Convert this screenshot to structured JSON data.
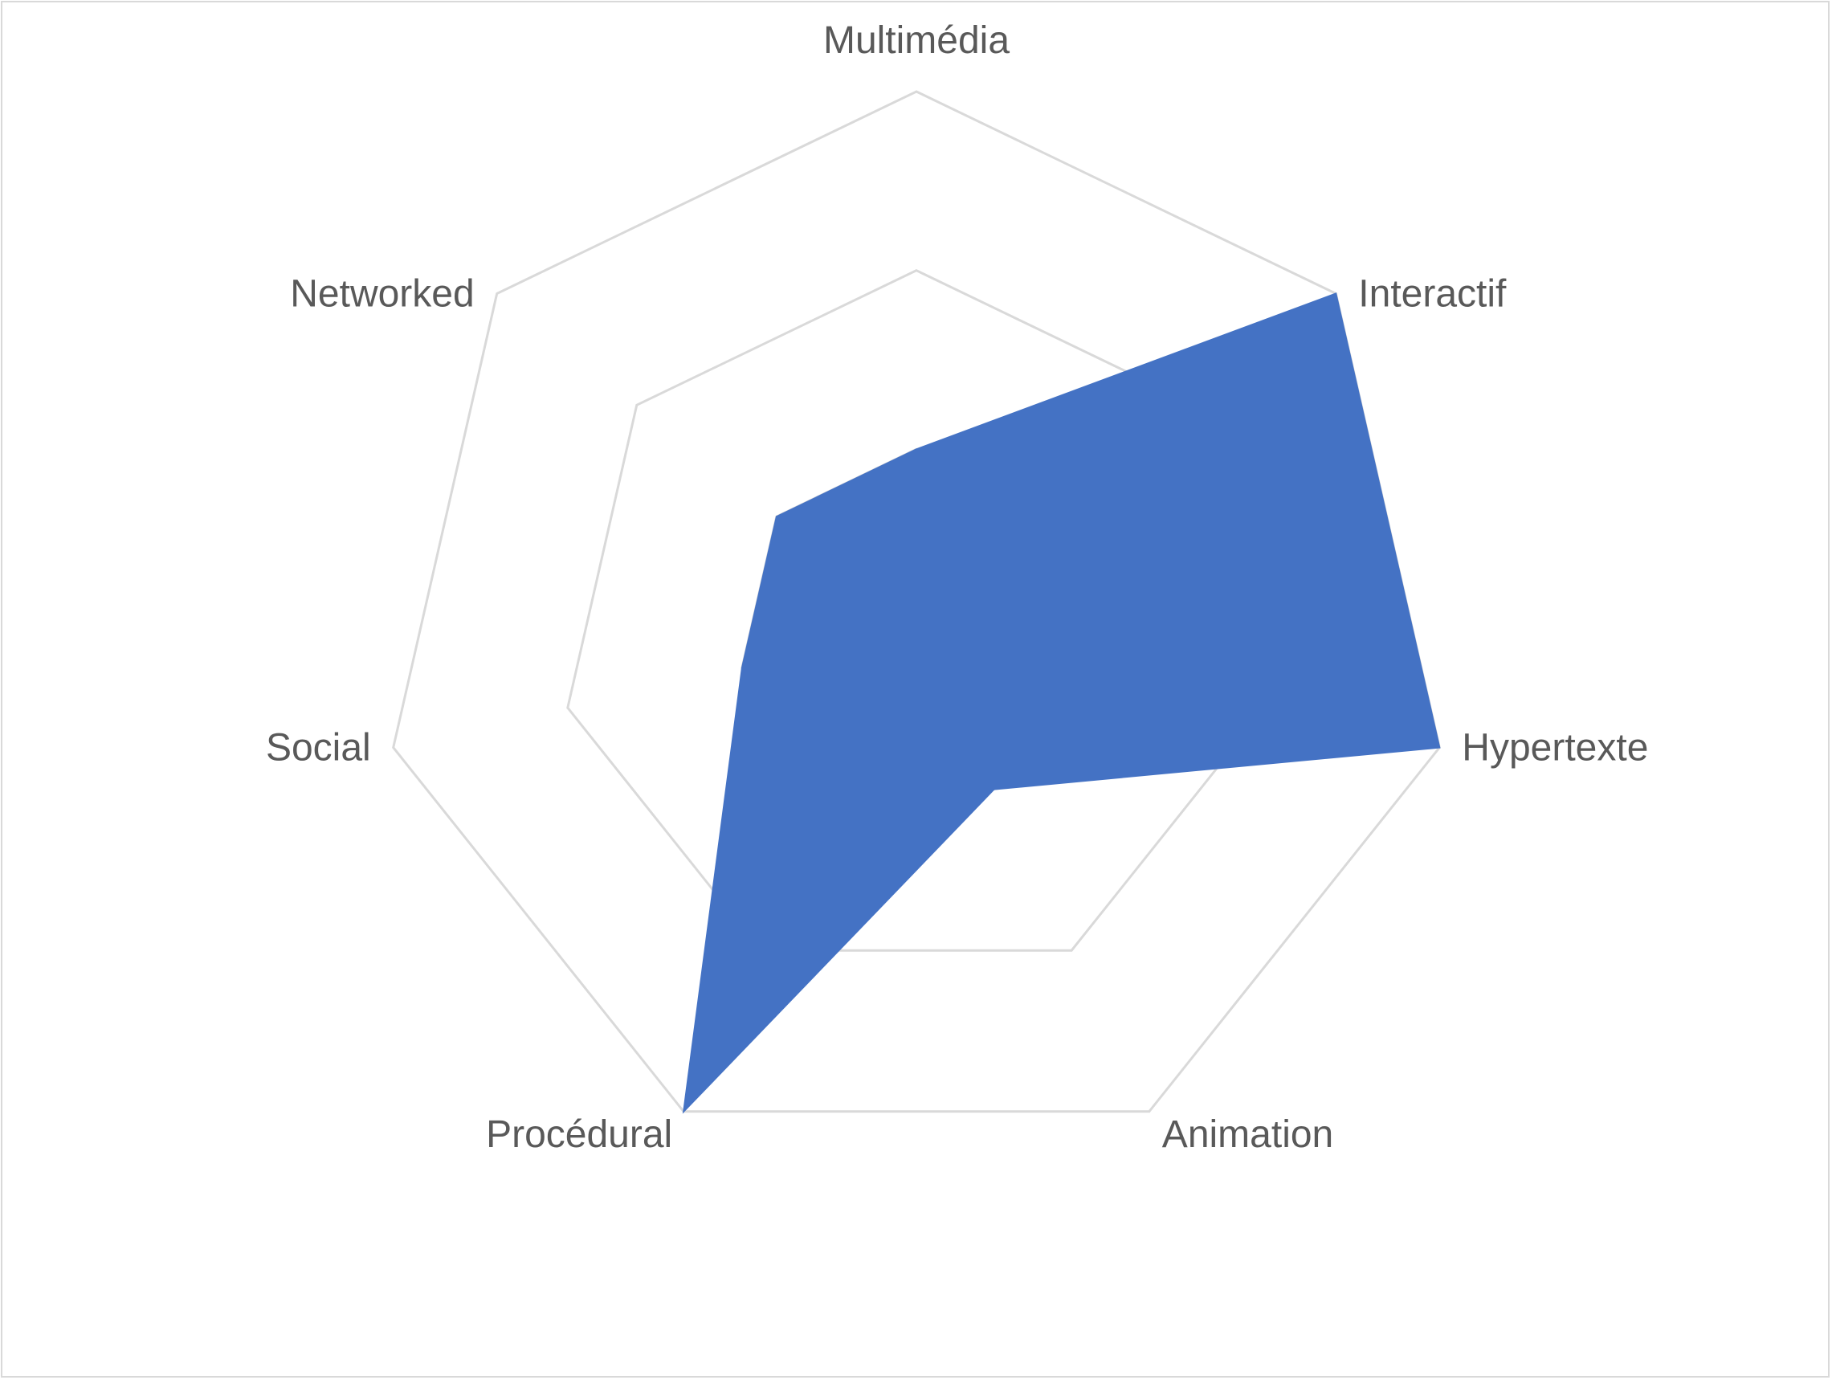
{
  "chart_data": {
    "type": "radar",
    "categories": [
      "Multimédia",
      "Interactif",
      "Hypertexte",
      "Animation",
      "Procédural",
      "Social",
      "Networked"
    ],
    "series": [
      {
        "values": [
          1,
          3,
          3,
          1,
          3,
          1,
          1
        ],
        "color": "#4472c4"
      }
    ],
    "rlim": [
      0,
      3
    ],
    "gridlines": [
      1,
      2,
      3
    ],
    "grid": true,
    "grid_color": "#d9d9d9",
    "label_color": "#595959",
    "legend": "none"
  }
}
